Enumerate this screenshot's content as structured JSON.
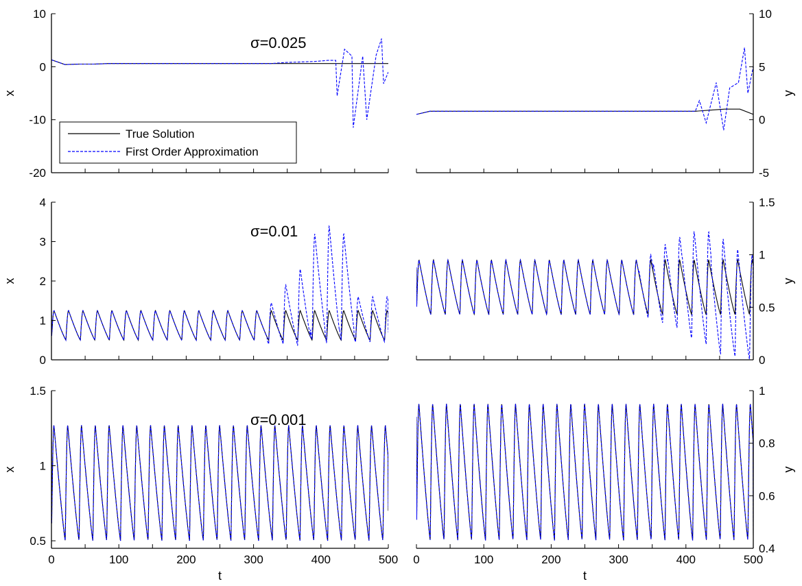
{
  "chart_data": [
    {
      "type": "line",
      "annotation": "σ=0.025",
      "xlabel": "",
      "ylabel": "x",
      "xlim": [
        0,
        500
      ],
      "ylim": [
        -20,
        10
      ],
      "xticks": [],
      "yticks": [
        -20,
        -10,
        0,
        10
      ],
      "grid": false,
      "legend": {
        "placement": "lower-left",
        "entries": [
          {
            "label": "True Solution",
            "color": "#000000",
            "style": "solid"
          },
          {
            "label": "First Order Approximation",
            "color": "#0000ff",
            "style": "dashed"
          }
        ]
      },
      "series": [
        {
          "name": "True Solution",
          "color": "#000000",
          "dash": "",
          "x": [
            0,
            20,
            42,
            63,
            85,
            106,
            128,
            150,
            172,
            194,
            216,
            238,
            260,
            282,
            304,
            326,
            348,
            370,
            392,
            414,
            436,
            458,
            480,
            500
          ],
          "y": [
            1.3,
            0.4,
            0.5,
            0.5,
            0.6,
            0.6,
            0.6,
            0.6,
            0.6,
            0.6,
            0.6,
            0.6,
            0.6,
            0.6,
            0.6,
            0.6,
            0.6,
            0.6,
            0.6,
            0.6,
            0.6,
            0.6,
            0.6,
            0.6
          ]
        },
        {
          "name": "First Order Approximation",
          "color": "#0000ff",
          "dash": "4,2",
          "x": [
            0,
            20,
            42,
            63,
            85,
            106,
            128,
            150,
            172,
            194,
            216,
            238,
            260,
            282,
            304,
            326,
            348,
            370,
            392,
            410,
            422,
            424,
            435,
            446,
            448,
            462,
            468,
            482,
            490,
            493,
            500
          ],
          "y": [
            1.3,
            0.4,
            0.5,
            0.5,
            0.6,
            0.6,
            0.6,
            0.6,
            0.6,
            0.6,
            0.6,
            0.6,
            0.6,
            0.6,
            0.6,
            0.6,
            0.8,
            0.9,
            1.0,
            1.2,
            1.2,
            -5.5,
            3.3,
            2.0,
            -11.5,
            2.0,
            -10.0,
            2.2,
            5.3,
            -3.2,
            -1.0
          ]
        }
      ]
    },
    {
      "type": "line",
      "annotation": "",
      "xlabel": "",
      "ylabel": "y",
      "xlim": [
        0,
        500
      ],
      "ylim": [
        -5,
        10
      ],
      "xticks": [],
      "yticks": [
        -5,
        0,
        5,
        10
      ],
      "grid": false,
      "series": [
        {
          "name": "True Solution",
          "color": "#000000",
          "dash": "",
          "x": [
            0,
            20,
            42,
            63,
            85,
            106,
            128,
            150,
            172,
            194,
            216,
            238,
            260,
            282,
            304,
            326,
            348,
            370,
            392,
            414,
            436,
            458,
            480,
            500
          ],
          "y": [
            0.5,
            0.8,
            0.8,
            0.8,
            0.8,
            0.8,
            0.8,
            0.8,
            0.8,
            0.8,
            0.8,
            0.8,
            0.8,
            0.8,
            0.8,
            0.8,
            0.8,
            0.8,
            0.8,
            0.8,
            0.9,
            1.0,
            1.0,
            0.5
          ]
        },
        {
          "name": "First Order Approximation",
          "color": "#0000ff",
          "dash": "4,2",
          "x": [
            0,
            20,
            42,
            63,
            85,
            106,
            128,
            150,
            172,
            194,
            216,
            238,
            260,
            282,
            304,
            326,
            348,
            370,
            392,
            414,
            420,
            430,
            445,
            456,
            465,
            478,
            487,
            492,
            500
          ],
          "y": [
            0.5,
            0.8,
            0.8,
            0.8,
            0.8,
            0.8,
            0.8,
            0.8,
            0.8,
            0.8,
            0.8,
            0.8,
            0.8,
            0.8,
            0.8,
            0.8,
            0.8,
            0.8,
            0.8,
            0.8,
            1.8,
            -0.3,
            3.5,
            -1.0,
            3.0,
            3.5,
            6.8,
            2.5,
            5.0
          ]
        }
      ]
    },
    {
      "type": "line",
      "annotation": "σ=0.01",
      "xlabel": "",
      "ylabel": "x",
      "xlim": [
        0,
        500
      ],
      "ylim": [
        0,
        4
      ],
      "xticks": [],
      "yticks": [
        0,
        1,
        2,
        3,
        4
      ],
      "grid": false,
      "series": [
        {
          "name": "True Solution",
          "color": "#000000",
          "dash": "",
          "kind": "oscillation",
          "x0": 0,
          "x_end": 500,
          "period": 21.5,
          "y_max": 1.25,
          "y_min": 0.5,
          "y_start": 1.25,
          "y_end": 1.15
        },
        {
          "name": "First Order Approximation",
          "color": "#0000ff",
          "dash": "4,2",
          "kind": "oscillation",
          "x0": 0,
          "x_end": 500,
          "period": 21.5,
          "y_max": 1.25,
          "y_min": 0.5,
          "y_start": 1.25,
          "y_end": 0.7,
          "x_break": 320,
          "peaks": [
            1.45,
            1.9,
            2.3,
            3.2,
            3.4,
            3.2,
            1.6
          ],
          "troughs": [
            0.4,
            0.4,
            0.35,
            0.5,
            0.4,
            0.5,
            0.45
          ]
        }
      ]
    },
    {
      "type": "line",
      "annotation": "",
      "xlabel": "",
      "ylabel": "y",
      "xlim": [
        0,
        500
      ],
      "ylim": [
        0,
        1.5
      ],
      "xticks": [],
      "yticks": [
        0,
        0.5,
        1,
        1.5
      ],
      "grid": false,
      "series": [
        {
          "name": "True Solution",
          "color": "#000000",
          "dash": "",
          "kind": "oscillation",
          "x0": 0,
          "x_end": 500,
          "period": 21.5,
          "y_max": 0.95,
          "y_min": 0.43,
          "y_start": 0.88,
          "y_end": 0.9
        },
        {
          "name": "First Order Approximation",
          "color": "#0000ff",
          "dash": "4,2",
          "kind": "oscillation",
          "x0": 0,
          "x_end": 500,
          "period": 21.5,
          "y_max": 0.95,
          "y_min": 0.43,
          "y_start": 0.88,
          "y_end": 0.5,
          "x_break": 330,
          "peaks": [
            1.0,
            1.1,
            1.17,
            1.22,
            1.22,
            1.15,
            1.05,
            1.0
          ],
          "troughs": [
            0.4,
            0.35,
            0.3,
            0.2,
            0.15,
            0.05,
            0.03,
            0.0
          ]
        }
      ]
    },
    {
      "type": "line",
      "annotation": "σ=0.001",
      "xlabel": "t",
      "ylabel": "x",
      "xlim": [
        0,
        500
      ],
      "ylim": [
        0.45,
        1.5
      ],
      "xticks": [
        0,
        100,
        200,
        300,
        400,
        500
      ],
      "yticks": [
        0.5,
        1,
        1.5
      ],
      "grid": false,
      "series": [
        {
          "name": "True Solution",
          "color": "#000000",
          "dash": "",
          "kind": "oscillation",
          "x0": 0,
          "x_end": 500,
          "period": 20.5,
          "y_max": 1.27,
          "y_min": 0.5,
          "y_start": 1.27,
          "y_end": 0.7
        },
        {
          "name": "First Order Approximation",
          "color": "#0000ff",
          "dash": "4,2",
          "kind": "oscillation",
          "x0": 0,
          "x_end": 500,
          "period": 20.5,
          "y_max": 1.27,
          "y_min": 0.5,
          "y_start": 1.27,
          "y_end": 0.72
        }
      ]
    },
    {
      "type": "line",
      "annotation": "",
      "xlabel": "t",
      "ylabel": "y",
      "xlim": [
        0,
        500
      ],
      "ylim": [
        0.4,
        1
      ],
      "xticks": [
        0,
        100,
        200,
        300,
        400,
        500
      ],
      "yticks": [
        0.4,
        0.6,
        0.8,
        1
      ],
      "grid": false,
      "series": [
        {
          "name": "True Solution",
          "color": "#000000",
          "dash": "",
          "kind": "oscillation",
          "x0": 0,
          "x_end": 500,
          "period": 20.5,
          "y_max": 0.95,
          "y_min": 0.43,
          "y_start": 0.9,
          "y_end": 0.45
        },
        {
          "name": "First Order Approximation",
          "color": "#0000ff",
          "dash": "4,2",
          "kind": "oscillation",
          "x0": 0,
          "x_end": 500,
          "period": 20.5,
          "y_max": 0.95,
          "y_min": 0.43,
          "y_start": 0.9,
          "y_end": 0.46
        }
      ]
    }
  ]
}
